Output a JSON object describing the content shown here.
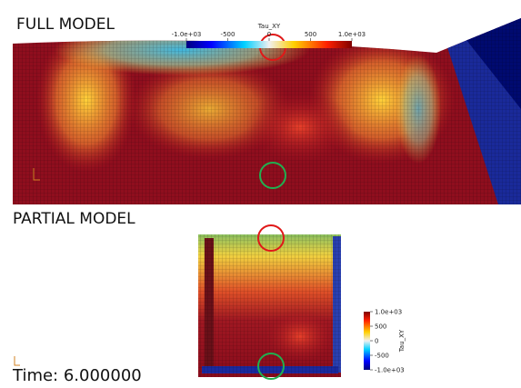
{
  "full_model": {
    "label": "FULL MODEL",
    "colorbar": {
      "title": "Tau_XY",
      "range": [
        -1000,
        1000
      ],
      "ticks": [
        {
          "value": -1000,
          "label": "-1.0e+03"
        },
        -500,
        0,
        500,
        {
          "value": 1000,
          "label": "1.0e+03"
        }
      ]
    }
  },
  "partial_model": {
    "label": "PARTIAL MODEL",
    "colorbar": {
      "title": "Tau_XY",
      "range": [
        -1000,
        1000
      ],
      "ticks": [
        {
          "value": 1000,
          "label": "1.0e+03"
        },
        500,
        0,
        -500,
        {
          "value": -1000,
          "label": "-1.0e+03"
        }
      ]
    }
  },
  "time_label": "Time: 6.000000"
}
